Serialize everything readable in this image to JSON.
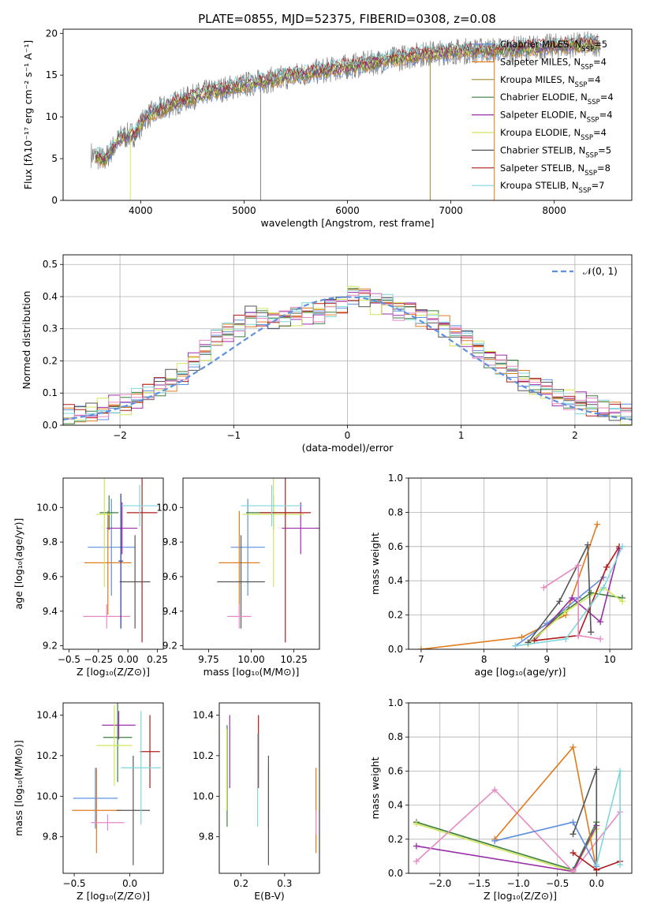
{
  "title": "PLATE=0855, MJD=52375, FIBERID=0308, z=0.08",
  "colors": {
    "blue": "#5f8fdf",
    "orange": "#e07b1e",
    "green": "#3d7f3d",
    "purple": "#9a2ea8",
    "lime": "#cfe65a",
    "darkgray": "#555555",
    "red": "#b01d1d",
    "cyan": "#7fd6dc",
    "pink": "#e78ac3",
    "gray": "#808080",
    "darkblue": "#2b3a8a"
  },
  "chart_data": [
    {
      "id": "spectrum",
      "type": "line",
      "title": "PLATE=0855, MJD=52375, FIBERID=0308, z=0.08",
      "xlabel": "wavelength [Angstrom, rest frame]",
      "ylabel": "Flux [fλ10⁻¹⁷ erg cm⁻² s⁻¹ A⁻¹]",
      "xlim": [
        3250,
        8750
      ],
      "ylim": [
        0,
        20.5
      ],
      "xticks": [
        4000,
        5000,
        6000,
        7000,
        8000
      ],
      "yticks": [
        0,
        5,
        10,
        15,
        20
      ],
      "grid": false,
      "legend": "top-right",
      "continuum": [
        [
          3520,
          5.5
        ],
        [
          3650,
          4.8
        ],
        [
          3800,
          7.5
        ],
        [
          3950,
          8.0
        ],
        [
          4050,
          10.0
        ],
        [
          4300,
          11.5
        ],
        [
          4600,
          12.8
        ],
        [
          4900,
          13.6
        ],
        [
          5200,
          14.3
        ],
        [
          5500,
          15.0
        ],
        [
          5900,
          15.8
        ],
        [
          6300,
          16.6
        ],
        [
          6700,
          17.5
        ],
        [
          7000,
          17.8
        ],
        [
          7400,
          18.0
        ],
        [
          7800,
          18.3
        ],
        [
          8200,
          18.6
        ],
        [
          8450,
          18.8
        ]
      ],
      "series": [
        {
          "name": "Chabrier MILES, N",
          "sub": "SSP",
          "suffix": "=5",
          "color": "#5f8fdf"
        },
        {
          "name": "Salpeter MILES, N",
          "sub": "SSP",
          "suffix": "=4",
          "color": "#e07b1e"
        },
        {
          "name": "Kroupa MILES, N",
          "sub": "SSP",
          "suffix": "=4",
          "color": "#9a8a2a"
        },
        {
          "name": "Chabrier ELODIE, N",
          "sub": "SSP",
          "suffix": "=4",
          "color": "#3d7f3d"
        },
        {
          "name": "Salpeter ELODIE, N",
          "sub": "SSP",
          "suffix": "=4",
          "color": "#9a2ea8"
        },
        {
          "name": "Kroupa ELODIE, N",
          "sub": "SSP",
          "suffix": "=4",
          "color": "#cfe65a"
        },
        {
          "name": "Chabrier STELIB, N",
          "sub": "SSP",
          "suffix": "=5",
          "color": "#555555"
        },
        {
          "name": "Salpeter STELIB, N",
          "sub": "SSP",
          "suffix": "=8",
          "color": "#b01d1d"
        },
        {
          "name": "Kroupa STELIB, N",
          "sub": "SSP",
          "suffix": "=7",
          "color": "#7fd6dc"
        }
      ]
    },
    {
      "id": "histogram",
      "type": "bar",
      "xlabel": "(data-model)/error",
      "ylabel": "Normed distribution",
      "xlim": [
        -2.5,
        2.5
      ],
      "ylim": [
        0,
        0.53
      ],
      "xticks": [
        -2,
        -1,
        0,
        1,
        2
      ],
      "yticks": [
        0.0,
        0.1,
        0.2,
        0.3,
        0.4,
        0.5
      ],
      "grid": true,
      "legend": "top-right",
      "legend_label": "𝒩(0, 1)",
      "bin_width": 0.1,
      "bin_start": -2.5,
      "values": [
        0.03,
        0.03,
        0.04,
        0.05,
        0.06,
        0.06,
        0.08,
        0.1,
        0.12,
        0.14,
        0.16,
        0.2,
        0.23,
        0.27,
        0.29,
        0.31,
        0.34,
        0.34,
        0.33,
        0.33,
        0.34,
        0.35,
        0.35,
        0.37,
        0.38,
        0.41,
        0.4,
        0.38,
        0.38,
        0.36,
        0.36,
        0.34,
        0.33,
        0.31,
        0.28,
        0.27,
        0.24,
        0.21,
        0.19,
        0.17,
        0.14,
        0.12,
        0.11,
        0.09,
        0.08,
        0.07,
        0.06,
        0.05,
        0.04,
        0.03
      ]
    },
    {
      "id": "age-vs-Z",
      "type": "scatter",
      "xlabel": "Z [log₁₀(Z/Z⊙)]",
      "ylabel": "age  [log₁₀(age/yr)]",
      "xlim": [
        -0.55,
        0.3
      ],
      "ylim": [
        9.18,
        10.17
      ],
      "xticks": [
        -0.5,
        -0.25,
        0.0,
        0.25
      ],
      "xticklabels": [
        "−0.5",
        "−0.25",
        "0.00",
        "0.25"
      ],
      "yticks": [
        9.2,
        9.4,
        9.6,
        9.8,
        10.0
      ],
      "points": [
        {
          "x": -0.14,
          "y": 9.77,
          "xe": 0.2,
          "ye": 0.28,
          "color": "#5f8fdf"
        },
        {
          "x": -0.17,
          "y": 9.68,
          "xe": 0.2,
          "ye": 0.3,
          "color": "#e07b1e"
        },
        {
          "x": -0.16,
          "y": 9.97,
          "xe": 0.08,
          "ye": 0.1,
          "color": "#3d7f3d"
        },
        {
          "x": -0.05,
          "y": 9.88,
          "xe": 0.13,
          "ye": 0.15,
          "color": "#9a2ea8"
        },
        {
          "x": -0.2,
          "y": 9.96,
          "xe": 0.07,
          "ye": 0.42,
          "color": "#cfe65a"
        },
        {
          "x": 0.06,
          "y": 9.57,
          "xe": 0.13,
          "ye": 0.27,
          "color": "#555555"
        },
        {
          "x": 0.12,
          "y": 9.97,
          "xe": 0.13,
          "ye": 0.75,
          "color": "#b01d1d"
        },
        {
          "x": 0.1,
          "y": 10.01,
          "xe": 0.16,
          "ye": 0.12,
          "color": "#7fd6dc"
        },
        {
          "x": -0.18,
          "y": 9.37,
          "xe": 0.2,
          "ye": 0.07,
          "color": "#e78ac3"
        },
        {
          "x": -0.06,
          "y": 9.69,
          "xe": 0.02,
          "ye": 0.39,
          "color": "#2b3a8a"
        }
      ]
    },
    {
      "id": "age-vs-mass",
      "type": "scatter",
      "xlabel": "mass [log₁₀(M/M⊙)]",
      "ylabel": "",
      "xlim": [
        9.6,
        10.4
      ],
      "ylim": [
        9.18,
        10.17
      ],
      "xticks": [
        9.75,
        10.0,
        10.25
      ],
      "xticklabels": [
        "9.75",
        "10.00",
        "10.25"
      ],
      "yticks": [
        9.2,
        9.4,
        9.6,
        9.8,
        10.0
      ],
      "points": [
        {
          "x": 9.98,
          "y": 9.77,
          "xe": 0.1,
          "ye": 0.28,
          "color": "#5f8fdf"
        },
        {
          "x": 9.93,
          "y": 9.68,
          "xe": 0.12,
          "ye": 0.3,
          "color": "#e07b1e"
        },
        {
          "x": 10.13,
          "y": 9.97,
          "xe": 0.16,
          "ye": 0.1,
          "color": "#3d7f3d"
        },
        {
          "x": 10.29,
          "y": 9.88,
          "xe": 0.11,
          "ye": 0.15,
          "color": "#9a2ea8"
        },
        {
          "x": 10.13,
          "y": 9.96,
          "xe": 0.18,
          "ye": 0.42,
          "color": "#cfe65a"
        },
        {
          "x": 9.94,
          "y": 9.57,
          "xe": 0.14,
          "ye": 0.27,
          "color": "#555555"
        },
        {
          "x": 10.2,
          "y": 9.97,
          "xe": 0.15,
          "ye": 0.75,
          "color": "#b01d1d"
        },
        {
          "x": 10.12,
          "y": 10.01,
          "xe": 0.18,
          "ye": 0.12,
          "color": "#7fd6dc"
        },
        {
          "x": 9.93,
          "y": 9.37,
          "xe": 0.07,
          "ye": 0.07,
          "color": "#e78ac3"
        }
      ]
    },
    {
      "id": "massweight-vs-age",
      "type": "line",
      "xlabel": "age  [log₁₀(age/yr)]",
      "ylabel": "mass weight",
      "xlim": [
        6.8,
        10.35
      ],
      "ylim": [
        0,
        1.0
      ],
      "xticks": [
        7,
        8,
        9,
        10
      ],
      "yticks": [
        0.0,
        0.2,
        0.4,
        0.6,
        0.8,
        1.0
      ],
      "grid": true,
      "series": [
        {
          "color": "#e07b1e",
          "points": [
            [
              7.0,
              0.0
            ],
            [
              8.6,
              0.07
            ],
            [
              9.3,
              0.2
            ],
            [
              9.8,
              0.73
            ]
          ]
        },
        {
          "color": "#5f8fdf",
          "points": [
            [
              8.5,
              0.02
            ],
            [
              9.0,
              0.15
            ],
            [
              9.5,
              0.3
            ],
            [
              9.9,
              0.42
            ]
          ]
        },
        {
          "color": "#3d7f3d",
          "points": [
            [
              8.7,
              0.03
            ],
            [
              9.2,
              0.2
            ],
            [
              9.7,
              0.33
            ],
            [
              10.2,
              0.3
            ]
          ]
        },
        {
          "color": "#9a2ea8",
          "points": [
            [
              8.8,
              0.05
            ],
            [
              9.4,
              0.3
            ],
            [
              9.85,
              0.16
            ],
            [
              10.15,
              0.59
            ]
          ]
        },
        {
          "color": "#cfe65a",
          "points": [
            [
              8.7,
              0.03
            ],
            [
              9.3,
              0.22
            ],
            [
              9.9,
              0.36
            ],
            [
              10.2,
              0.28
            ]
          ]
        },
        {
          "color": "#555555",
          "points": [
            [
              8.7,
              0.04
            ],
            [
              9.2,
              0.28
            ],
            [
              9.65,
              0.61
            ],
            [
              9.7,
              0.1
            ]
          ]
        },
        {
          "color": "#b01d1d",
          "points": [
            [
              8.8,
              0.05
            ],
            [
              9.5,
              0.08
            ],
            [
              9.95,
              0.48
            ],
            [
              10.15,
              0.6
            ]
          ]
        },
        {
          "color": "#7fd6dc",
          "points": [
            [
              8.5,
              0.02
            ],
            [
              9.3,
              0.06
            ],
            [
              9.9,
              0.36
            ],
            [
              10.2,
              0.6
            ]
          ]
        },
        {
          "color": "#e78ac3",
          "points": [
            [
              8.95,
              0.36
            ],
            [
              9.5,
              0.49
            ],
            [
              9.5,
              0.08
            ],
            [
              9.85,
              0.06
            ]
          ]
        }
      ]
    },
    {
      "id": "mass-vs-Z",
      "type": "scatter",
      "xlabel": "Z [log₁₀(Z/Z⊙)]",
      "ylabel": "mass [log₁₀(M/M⊙)]",
      "xlim": [
        -0.6,
        0.3
      ],
      "ylim": [
        9.62,
        10.46
      ],
      "xticks": [
        -0.5,
        0.0
      ],
      "xticklabels": [
        "−0.5",
        "0.0"
      ],
      "yticks": [
        9.8,
        10.0,
        10.2,
        10.4
      ],
      "points": [
        {
          "x": -0.31,
          "y": 9.99,
          "xe": 0.2,
          "ye": 0.15,
          "color": "#5f8fdf"
        },
        {
          "x": -0.3,
          "y": 9.93,
          "xe": 0.22,
          "ye": 0.21,
          "color": "#e07b1e"
        },
        {
          "x": -0.11,
          "y": 10.29,
          "xe": 0.13,
          "ye": 0.22,
          "color": "#3d7f3d"
        },
        {
          "x": -0.1,
          "y": 10.35,
          "xe": 0.15,
          "ye": 0.07,
          "color": "#9a2ea8"
        },
        {
          "x": -0.14,
          "y": 10.25,
          "xe": 0.16,
          "ye": 0.2,
          "color": "#cfe65a"
        },
        {
          "x": 0.03,
          "y": 9.93,
          "xe": 0.15,
          "ye": 0.27,
          "color": "#555555"
        },
        {
          "x": 0.18,
          "y": 10.22,
          "xe": 0.09,
          "ye": 0.18,
          "color": "#b01d1d"
        },
        {
          "x": 0.1,
          "y": 10.14,
          "xe": 0.18,
          "ye": 0.28,
          "color": "#7fd6dc"
        },
        {
          "x": -0.2,
          "y": 9.87,
          "xe": 0.15,
          "ye": 0.04,
          "color": "#e78ac3"
        }
      ]
    },
    {
      "id": "mass-vs-EBV",
      "type": "scatter",
      "xlabel": "E(B-V)",
      "ylabel": "",
      "xlim": [
        0.15,
        0.38
      ],
      "ylim": [
        9.62,
        10.46
      ],
      "xticks": [
        0.2,
        0.3
      ],
      "xticklabels": [
        "0.2",
        "0.3"
      ],
      "yticks": [
        9.8,
        10.0,
        10.2,
        10.4
      ],
      "points": [
        {
          "x": 0.263,
          "y": 9.99,
          "xe": 0,
          "ye": 0.15,
          "color": "#5f8fdf"
        },
        {
          "x": 0.372,
          "y": 9.93,
          "xe": 0,
          "ye": 0.21,
          "color": "#e07b1e"
        },
        {
          "x": 0.168,
          "y": 10.1,
          "xe": 0,
          "ye": 0.25,
          "color": "#3d7f3d"
        },
        {
          "x": 0.174,
          "y": 10.22,
          "xe": 0,
          "ye": 0.18,
          "color": "#9a2ea8"
        },
        {
          "x": 0.167,
          "y": 10.13,
          "xe": 0,
          "ye": 0.2,
          "color": "#cfe65a"
        },
        {
          "x": 0.263,
          "y": 9.93,
          "xe": 0,
          "ye": 0.27,
          "color": "#555555"
        },
        {
          "x": 0.24,
          "y": 10.22,
          "xe": 0,
          "ye": 0.18,
          "color": "#b01d1d"
        },
        {
          "x": 0.238,
          "y": 10.08,
          "xe": 0,
          "ye": 0.23,
          "color": "#7fd6dc"
        },
        {
          "x": 0.372,
          "y": 9.87,
          "xe": 0,
          "ye": 0.06,
          "color": "#e78ac3"
        }
      ]
    },
    {
      "id": "massweight-vs-Z",
      "type": "line",
      "xlabel": "Z [log₁₀(Z/Z⊙)]",
      "ylabel": "mass weight",
      "xlim": [
        -2.4,
        0.45
      ],
      "ylim": [
        0,
        1.0
      ],
      "xticks": [
        -2.0,
        -1.5,
        -1.0,
        -0.5,
        0.0
      ],
      "xticklabels": [
        "−2.0",
        "−1.5",
        "−1.0",
        "−0.5",
        "0.0"
      ],
      "yticks": [
        0.0,
        0.2,
        0.4,
        0.6,
        0.8,
        1.0
      ],
      "grid": true,
      "series": [
        {
          "color": "#3d7f3d",
          "points": [
            [
              -2.3,
              0.3
            ],
            [
              -0.3,
              0.02
            ],
            [
              0.0,
              0.3
            ]
          ]
        },
        {
          "color": "#cfe65a",
          "points": [
            [
              -2.3,
              0.29
            ],
            [
              -0.3,
              0.01
            ],
            [
              0.0,
              0.26
            ]
          ]
        },
        {
          "color": "#9a2ea8",
          "points": [
            [
              -2.3,
              0.16
            ],
            [
              -0.3,
              0.01
            ],
            [
              0.0,
              0.28
            ]
          ]
        },
        {
          "color": "#e78ac3",
          "points": [
            [
              -2.3,
              0.07
            ],
            [
              -1.3,
              0.49
            ],
            [
              -0.3,
              0.01
            ],
            [
              0.3,
              0.36
            ]
          ]
        },
        {
          "color": "#e07b1e",
          "points": [
            [
              -1.3,
              0.2
            ],
            [
              -0.3,
              0.74
            ],
            [
              0.0,
              0.02
            ]
          ]
        },
        {
          "color": "#5f8fdf",
          "points": [
            [
              -1.3,
              0.19
            ],
            [
              -0.3,
              0.3
            ],
            [
              0.0,
              0.04
            ]
          ]
        },
        {
          "color": "#555555",
          "points": [
            [
              -0.3,
              0.23
            ],
            [
              0.0,
              0.61
            ],
            [
              0.0,
              0.02
            ]
          ]
        },
        {
          "color": "#b01d1d",
          "points": [
            [
              -0.3,
              0.12
            ],
            [
              0.0,
              0.02
            ],
            [
              0.3,
              0.07
            ]
          ]
        },
        {
          "color": "#7fd6dc",
          "points": [
            [
              0.0,
              0.05
            ],
            [
              0.3,
              0.6
            ],
            [
              0.3,
              0.05
            ]
          ]
        }
      ]
    }
  ]
}
